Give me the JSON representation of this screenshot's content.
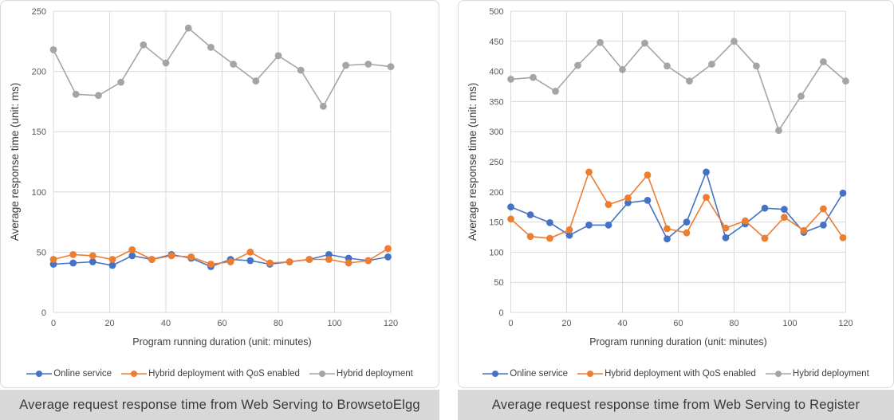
{
  "colors": {
    "page_bg": "#ffffff",
    "panel_border": "#d9d9d9",
    "grid": "#d9d9d9",
    "tick_text": "#595959",
    "axis_title_text": "#3d3d3d",
    "legend_text": "#404040",
    "caption_bg": "#d8d8d8",
    "caption_text": "#3a3a3a",
    "series_blue": "#4472C4",
    "series_orange": "#ED7D31",
    "series_gray": "#A5A5A5"
  },
  "chart_data": [
    {
      "type": "line",
      "caption": "Average request response time from Web Serving to BrowsetoElgg",
      "xlabel": "Program running duration (unit: minutes)",
      "ylabel": "Average response time (unit: ms)",
      "xlim": [
        0,
        120
      ],
      "ylim": [
        0,
        250
      ],
      "x_ticks": [
        0,
        20,
        40,
        60,
        80,
        100,
        120
      ],
      "y_ticks": [
        0,
        50,
        100,
        150,
        200,
        250
      ],
      "grid": true,
      "legend_position": "bottom",
      "series": [
        {
          "name": "Online service",
          "color": "#4472C4",
          "x": [
            0,
            7,
            14,
            21,
            28,
            35,
            42,
            49,
            56,
            63,
            70,
            77,
            84,
            91,
            98,
            105,
            112,
            119
          ],
          "values": [
            40,
            41,
            42,
            39,
            47,
            44,
            48,
            45,
            38,
            44,
            43,
            40,
            42,
            44,
            48,
            45,
            43,
            46
          ]
        },
        {
          "name": "Hybrid deployment with QoS enabled",
          "color": "#ED7D31",
          "x": [
            0,
            7,
            14,
            21,
            28,
            35,
            42,
            49,
            56,
            63,
            70,
            77,
            84,
            91,
            98,
            105,
            112,
            119
          ],
          "values": [
            44,
            48,
            47,
            44,
            52,
            44,
            47,
            46,
            40,
            42,
            50,
            41,
            42,
            44,
            44,
            41,
            43,
            53
          ]
        },
        {
          "name": "Hybrid deployment",
          "color": "#A5A5A5",
          "x": [
            0,
            8,
            16,
            24,
            32,
            40,
            48,
            56,
            64,
            72,
            80,
            88,
            96,
            104,
            112,
            120
          ],
          "values": [
            218,
            181,
            180,
            191,
            222,
            207,
            236,
            220,
            206,
            192,
            213,
            201,
            171,
            205,
            206,
            204
          ]
        }
      ]
    },
    {
      "type": "line",
      "caption": "Average request response time from Web Serving to Register",
      "xlabel": "Program running duration (unit: minutes)",
      "ylabel": "Average response time (unit: ms)",
      "xlim": [
        0,
        120
      ],
      "ylim": [
        0,
        500
      ],
      "x_ticks": [
        0,
        20,
        40,
        60,
        80,
        100,
        120
      ],
      "y_ticks": [
        0,
        50,
        100,
        150,
        200,
        250,
        300,
        350,
        400,
        450,
        500
      ],
      "grid": true,
      "legend_position": "bottom",
      "series": [
        {
          "name": "Online service",
          "color": "#4472C4",
          "x": [
            0,
            7,
            14,
            21,
            28,
            35,
            42,
            49,
            56,
            63,
            70,
            77,
            84,
            91,
            98,
            105,
            112,
            119
          ],
          "values": [
            175,
            162,
            149,
            128,
            145,
            145,
            182,
            186,
            122,
            150,
            233,
            124,
            147,
            173,
            171,
            133,
            145,
            198
          ]
        },
        {
          "name": "Hybrid deployment with QoS enabled",
          "color": "#ED7D31",
          "x": [
            0,
            7,
            14,
            21,
            28,
            35,
            42,
            49,
            56,
            63,
            70,
            77,
            84,
            91,
            98,
            105,
            112,
            119
          ],
          "values": [
            155,
            126,
            123,
            137,
            233,
            179,
            190,
            228,
            139,
            132,
            191,
            140,
            152,
            123,
            158,
            136,
            172,
            124
          ]
        },
        {
          "name": "Hybrid deployment",
          "color": "#A5A5A5",
          "x": [
            0,
            8,
            16,
            24,
            32,
            40,
            48,
            56,
            64,
            72,
            80,
            88,
            96,
            104,
            112,
            120
          ],
          "values": [
            387,
            390,
            367,
            410,
            448,
            403,
            447,
            409,
            384,
            412,
            450,
            409,
            302,
            359,
            416,
            384
          ]
        }
      ]
    }
  ]
}
